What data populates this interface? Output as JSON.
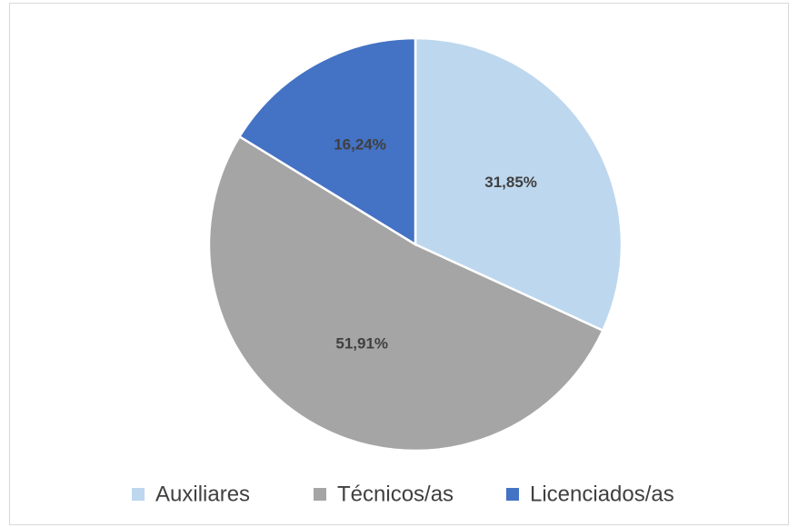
{
  "chart_data": {
    "type": "pie",
    "categories": [
      "Auxiliares",
      "Técnicos/as",
      "Licenciados/as"
    ],
    "values": [
      31.85,
      51.91,
      16.24
    ],
    "value_labels": [
      "31,85%",
      "51,91%",
      "16,24%"
    ],
    "colors": [
      "#bdd7ee",
      "#a5a5a5",
      "#4472c4"
    ],
    "legend": "bottom"
  }
}
